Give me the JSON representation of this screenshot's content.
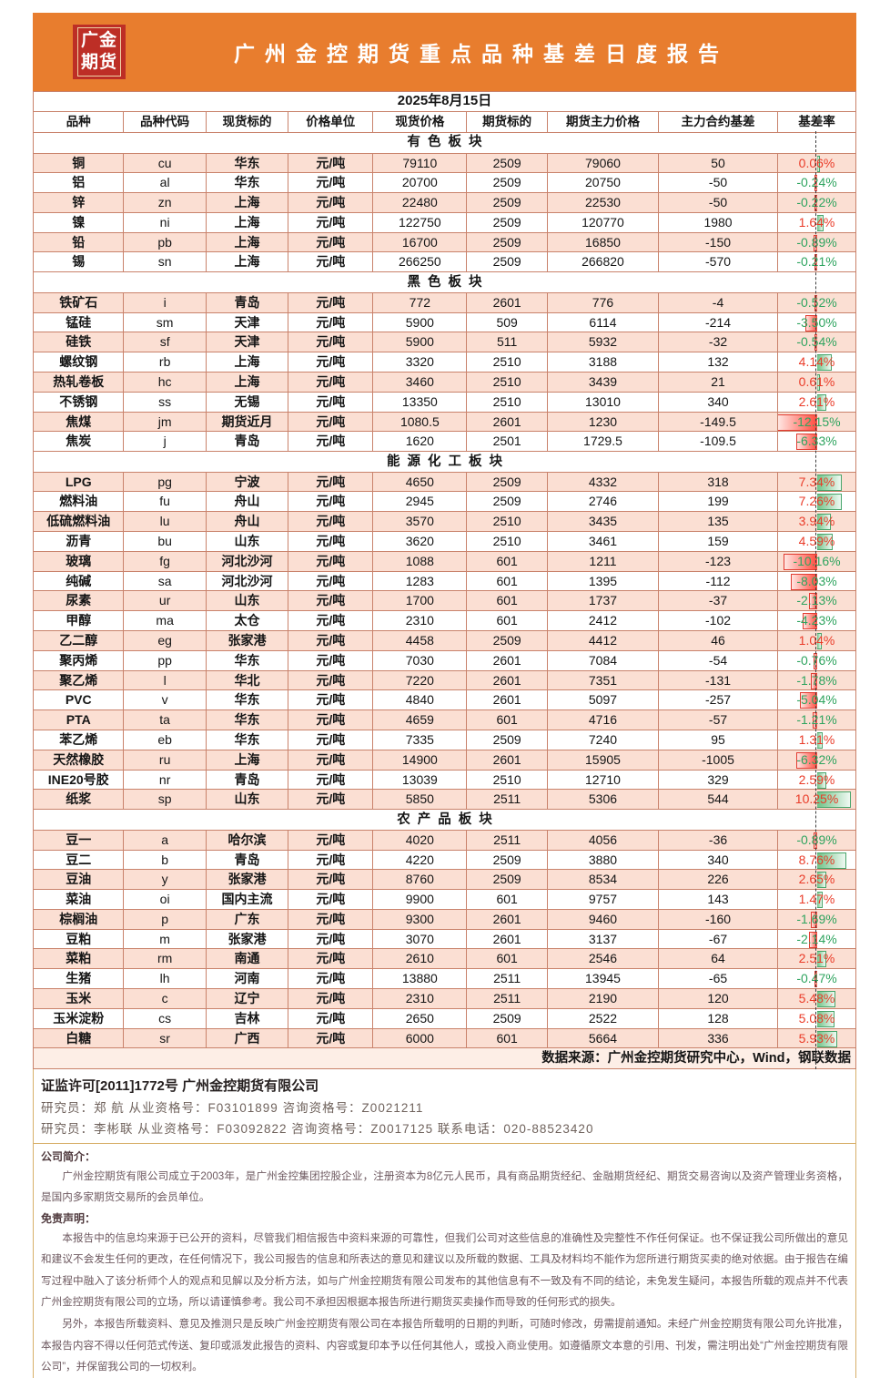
{
  "header": {
    "logo_line1": "广金",
    "logo_line2": "期货",
    "title": "广州金控期货重点品种基差日度报告"
  },
  "date": "2025年8月15日",
  "columns": [
    "品种",
    "品种代码",
    "现货标的",
    "价格单位",
    "现货价格",
    "期货标的",
    "期货主力价格",
    "主力合约基差",
    "基差率"
  ],
  "sections": [
    {
      "name": "有色板块",
      "rows": [
        [
          "铜",
          "cu",
          "华东",
          "元/吨",
          "79110",
          "2509",
          "79060",
          "50",
          "0.06%"
        ],
        [
          "铝",
          "al",
          "华东",
          "元/吨",
          "20700",
          "2509",
          "20750",
          "-50",
          "-0.24%"
        ],
        [
          "锌",
          "zn",
          "上海",
          "元/吨",
          "22480",
          "2509",
          "22530",
          "-50",
          "-0.22%"
        ],
        [
          "镍",
          "ni",
          "上海",
          "元/吨",
          "122750",
          "2509",
          "120770",
          "1980",
          "1.64%"
        ],
        [
          "铅",
          "pb",
          "上海",
          "元/吨",
          "16700",
          "2509",
          "16850",
          "-150",
          "-0.89%"
        ],
        [
          "锡",
          "sn",
          "上海",
          "元/吨",
          "266250",
          "2509",
          "266820",
          "-570",
          "-0.21%"
        ]
      ]
    },
    {
      "name": "黑色板块",
      "rows": [
        [
          "铁矿石",
          "i",
          "青岛",
          "元/吨",
          "772",
          "2601",
          "776",
          "-4",
          "-0.52%"
        ],
        [
          "锰硅",
          "sm",
          "天津",
          "元/吨",
          "5900",
          "509",
          "6114",
          "-214",
          "-3.50%"
        ],
        [
          "硅铁",
          "sf",
          "天津",
          "元/吨",
          "5900",
          "511",
          "5932",
          "-32",
          "-0.54%"
        ],
        [
          "螺纹钢",
          "rb",
          "上海",
          "元/吨",
          "3320",
          "2510",
          "3188",
          "132",
          "4.14%"
        ],
        [
          "热轧卷板",
          "hc",
          "上海",
          "元/吨",
          "3460",
          "2510",
          "3439",
          "21",
          "0.61%"
        ],
        [
          "不锈钢",
          "ss",
          "无锡",
          "元/吨",
          "13350",
          "2510",
          "13010",
          "340",
          "2.61%"
        ],
        [
          "焦煤",
          "jm",
          "期货近月",
          "元/吨",
          "1080.5",
          "2601",
          "1230",
          "-149.5",
          "-12.15%"
        ],
        [
          "焦炭",
          "j",
          "青岛",
          "元/吨",
          "1620",
          "2501",
          "1729.5",
          "-109.5",
          "-6.33%"
        ]
      ]
    },
    {
      "name": "能源化工板块",
      "rows": [
        [
          "LPG",
          "pg",
          "宁波",
          "元/吨",
          "4650",
          "2509",
          "4332",
          "318",
          "7.34%"
        ],
        [
          "燃料油",
          "fu",
          "舟山",
          "元/吨",
          "2945",
          "2509",
          "2746",
          "199",
          "7.26%"
        ],
        [
          "低硫燃料油",
          "lu",
          "舟山",
          "元/吨",
          "3570",
          "2510",
          "3435",
          "135",
          "3.94%"
        ],
        [
          "沥青",
          "bu",
          "山东",
          "元/吨",
          "3620",
          "2510",
          "3461",
          "159",
          "4.59%"
        ],
        [
          "玻璃",
          "fg",
          "河北沙河",
          "元/吨",
          "1088",
          "601",
          "1211",
          "-123",
          "-10.16%"
        ],
        [
          "纯碱",
          "sa",
          "河北沙河",
          "元/吨",
          "1283",
          "601",
          "1395",
          "-112",
          "-8.03%"
        ],
        [
          "尿素",
          "ur",
          "山东",
          "元/吨",
          "1700",
          "601",
          "1737",
          "-37",
          "-2.13%"
        ],
        [
          "甲醇",
          "ma",
          "太仓",
          "元/吨",
          "2310",
          "601",
          "2412",
          "-102",
          "-4.23%"
        ],
        [
          "乙二醇",
          "eg",
          "张家港",
          "元/吨",
          "4458",
          "2509",
          "4412",
          "46",
          "1.04%"
        ],
        [
          "聚丙烯",
          "pp",
          "华东",
          "元/吨",
          "7030",
          "2601",
          "7084",
          "-54",
          "-0.76%"
        ],
        [
          "聚乙烯",
          "l",
          "华北",
          "元/吨",
          "7220",
          "2601",
          "7351",
          "-131",
          "-1.78%"
        ],
        [
          "PVC",
          "v",
          "华东",
          "元/吨",
          "4840",
          "2601",
          "5097",
          "-257",
          "-5.04%"
        ],
        [
          "PTA",
          "ta",
          "华东",
          "元/吨",
          "4659",
          "601",
          "4716",
          "-57",
          "-1.21%"
        ],
        [
          "苯乙烯",
          "eb",
          "华东",
          "元/吨",
          "7335",
          "2509",
          "7240",
          "95",
          "1.31%"
        ],
        [
          "天然橡胶",
          "ru",
          "上海",
          "元/吨",
          "14900",
          "2601",
          "15905",
          "-1005",
          "-6.32%"
        ],
        [
          "INE20号胶",
          "nr",
          "青岛",
          "元/吨",
          "13039",
          "2510",
          "12710",
          "329",
          "2.59%"
        ],
        [
          "纸浆",
          "sp",
          "山东",
          "元/吨",
          "5850",
          "2511",
          "5306",
          "544",
          "10.25%"
        ]
      ]
    },
    {
      "name": "农产品板块",
      "rows": [
        [
          "豆一",
          "a",
          "哈尔滨",
          "元/吨",
          "4020",
          "2511",
          "4056",
          "-36",
          "-0.89%"
        ],
        [
          "豆二",
          "b",
          "青岛",
          "元/吨",
          "4220",
          "2509",
          "3880",
          "340",
          "8.76%"
        ],
        [
          "豆油",
          "y",
          "张家港",
          "元/吨",
          "8760",
          "2509",
          "8534",
          "226",
          "2.65%"
        ],
        [
          "菜油",
          "oi",
          "国内主流",
          "元/吨",
          "9900",
          "601",
          "9757",
          "143",
          "1.47%"
        ],
        [
          "棕榈油",
          "p",
          "广东",
          "元/吨",
          "9300",
          "2601",
          "9460",
          "-160",
          "-1.69%"
        ],
        [
          "豆粕",
          "m",
          "张家港",
          "元/吨",
          "3070",
          "2601",
          "3137",
          "-67",
          "-2.14%"
        ],
        [
          "菜粕",
          "rm",
          "南通",
          "元/吨",
          "2610",
          "601",
          "2546",
          "64",
          "2.51%"
        ],
        [
          "生猪",
          "lh",
          "河南",
          "元/吨",
          "13880",
          "2511",
          "13945",
          "-65",
          "-0.47%"
        ],
        [
          "玉米",
          "c",
          "辽宁",
          "元/吨",
          "2310",
          "2511",
          "2190",
          "120",
          "5.48%"
        ],
        [
          "玉米淀粉",
          "cs",
          "吉林",
          "元/吨",
          "2650",
          "2509",
          "2522",
          "128",
          "5.08%"
        ],
        [
          "白糖",
          "sr",
          "广西",
          "元/吨",
          "6000",
          "601",
          "5664",
          "336",
          "5.93%"
        ]
      ]
    }
  ],
  "source_note": "数据来源：广州金控期货研究中心，Wind，钢联数据",
  "footer": {
    "license_line": "证监许可[2011]1772号 广州金控期货有限公司",
    "researcher_line1": "研究员：郑  航    从业资格号：F03101899    咨询资格号：Z0021211",
    "researcher_line2": "研究员：李彬联    从业资格号：F03092822    咨询资格号：Z0017125   联系电话：020-88523420",
    "company_intro_title": "公司简介：",
    "company_intro": "广州金控期货有限公司成立于2003年，是广州金控集团控股企业，注册资本为8亿元人民币，具有商品期货经纪、金融期货经纪、期货交易咨询以及资产管理业务资格，是国内多家期货交易所的会员单位。",
    "disclaimer_title": "免责声明：",
    "disclaimer_p1": "本报告中的信息均来源于已公开的资料，尽管我们相信报告中资料来源的可靠性，但我们公司对这些信息的准确性及完整性不作任何保证。也不保证我公司所做出的意见和建议不会发生任何的更改，在任何情况下，我公司报告的信息和所表达的意见和建议以及所载的数据、工具及材料均不能作为您所进行期货买卖的绝对依据。由于报告在编写过程中融入了该分析师个人的观点和见解以及分析方法，如与广州金控期货有限公司发布的其他信息有不一致及有不同的结论，未免发生疑问，本报告所载的观点并不代表广州金控期货有限公司的立场，所以请谨慎参考。我公司不承担因根据本报告所进行期货买卖操作而导致的任何形式的损失。",
    "disclaimer_p2": "另外，本报告所载资料、意见及推测只是反映广州金控期货有限公司在本报告所载明的日期的判断，可随时修改，毋需提前通知。未经广州金控期货有限公司允许批准，本报告内容不得以任何范式传送、复印或派发此报告的资料、内容或复印本予以任何其他人，或投入商业使用。如遵循原文本意的引用、刊发，需注明出处“广州金控期货有限公司”，并保留我公司的一切权利。"
  },
  "colors": {
    "banner_orange": "#e87d2e",
    "logo_red": "#bd2e26",
    "row_peach": "#fbdfd3",
    "grid_border": "#c9826b",
    "rate_positive_text": "#ea3b28",
    "rate_negative_text": "#2fa45f",
    "contract_column_text": "#c00000",
    "bar_positive": "#6fc287",
    "bar_negative": "#ff4b3e",
    "gold_line": "#d8b06a"
  },
  "rate_bar_scale_max_abs_percent": 12.15
}
